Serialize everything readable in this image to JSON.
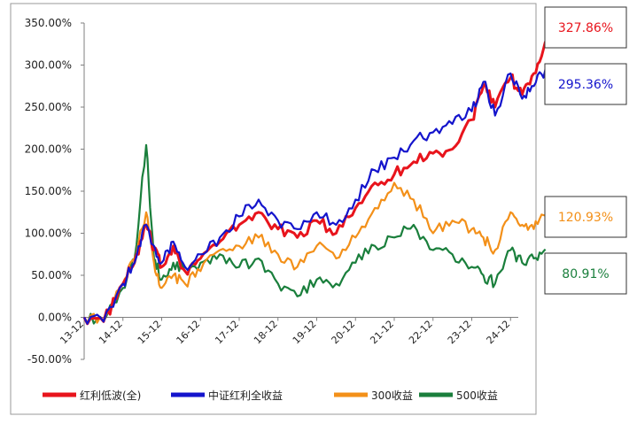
{
  "chart_data": {
    "type": "line",
    "title": "",
    "xlabel": "",
    "ylabel": "",
    "ylim": [
      -50,
      350
    ],
    "y_ticks": [
      "350.00%",
      "300.00%",
      "250.00%",
      "200.00%",
      "150.00%",
      "100.00%",
      "50.00%",
      "0.00%",
      "-50.00%"
    ],
    "x_ticks": [
      "13-12",
      "14-12",
      "15-12",
      "16-12",
      "17-12",
      "18-12",
      "19-12",
      "20-12",
      "21-12",
      "22-12",
      "23-12",
      "24-12"
    ],
    "x_start": "13-12",
    "grid": false,
    "legend_position": "bottom",
    "series": [
      {
        "name": "红利低波(全)",
        "color": "#e8141c",
        "end_label": "327.86%",
        "x": [
          0,
          0.5,
          1,
          1.3,
          1.6,
          1.8,
          2,
          2.3,
          2.6,
          3,
          3.5,
          4,
          4.5,
          5,
          5.5,
          6,
          6.5,
          7,
          7.5,
          8,
          8.5,
          9,
          9.5,
          10,
          10.3,
          10.6,
          11,
          11.3,
          11.6,
          11.9
        ],
        "values": [
          0,
          -5,
          40,
          65,
          110,
          80,
          60,
          85,
          55,
          70,
          90,
          110,
          125,
          105,
          95,
          115,
          100,
          130,
          160,
          170,
          185,
          195,
          200,
          235,
          275,
          250,
          285,
          265,
          290,
          328
        ]
      },
      {
        "name": "中证红利全收益",
        "color": "#1414cc",
        "end_label": "295.36%",
        "x": [
          0,
          0.5,
          1,
          1.3,
          1.6,
          1.8,
          2,
          2.3,
          2.6,
          3,
          3.5,
          4,
          4.5,
          5,
          5.5,
          6,
          6.5,
          7,
          7.5,
          8,
          8.5,
          9,
          9.5,
          10,
          10.3,
          10.6,
          11,
          11.3,
          11.6,
          11.9
        ],
        "values": [
          0,
          -5,
          40,
          65,
          110,
          85,
          65,
          90,
          60,
          75,
          95,
          120,
          140,
          115,
          105,
          125,
          110,
          140,
          175,
          190,
          210,
          220,
          230,
          245,
          280,
          240,
          290,
          260,
          275,
          295
        ]
      },
      {
        "name": "300收益",
        "color": "#f39019",
        "end_label": "120.93%",
        "x": [
          0,
          0.5,
          1,
          1.3,
          1.6,
          1.8,
          2,
          2.3,
          2.6,
          3,
          3.5,
          4,
          4.5,
          5,
          5.5,
          6,
          6.5,
          7,
          7.5,
          8,
          8.5,
          9,
          9.5,
          10,
          10.3,
          10.6,
          11,
          11.3,
          11.6,
          11.9
        ],
        "values": [
          0,
          -5,
          40,
          70,
          125,
          65,
          35,
          50,
          40,
          55,
          80,
          85,
          95,
          75,
          60,
          85,
          70,
          95,
          130,
          160,
          140,
          100,
          115,
          105,
          95,
          80,
          125,
          110,
          105,
          121
        ]
      },
      {
        "name": "500收益",
        "color": "#1a7f3c",
        "end_label": "80.91%",
        "x": [
          0,
          0.5,
          1,
          1.3,
          1.6,
          1.8,
          2,
          2.3,
          2.6,
          3,
          3.5,
          4,
          4.5,
          5,
          5.5,
          6,
          6.5,
          7,
          7.5,
          8,
          8.5,
          9,
          9.5,
          10,
          10.3,
          10.6,
          11,
          11.3,
          11.6,
          11.9
        ],
        "values": [
          0,
          -5,
          35,
          70,
          205,
          70,
          45,
          65,
          55,
          65,
          75,
          60,
          70,
          40,
          25,
          45,
          40,
          65,
          85,
          95,
          110,
          80,
          75,
          60,
          50,
          40,
          80,
          65,
          70,
          81
        ]
      }
    ]
  }
}
